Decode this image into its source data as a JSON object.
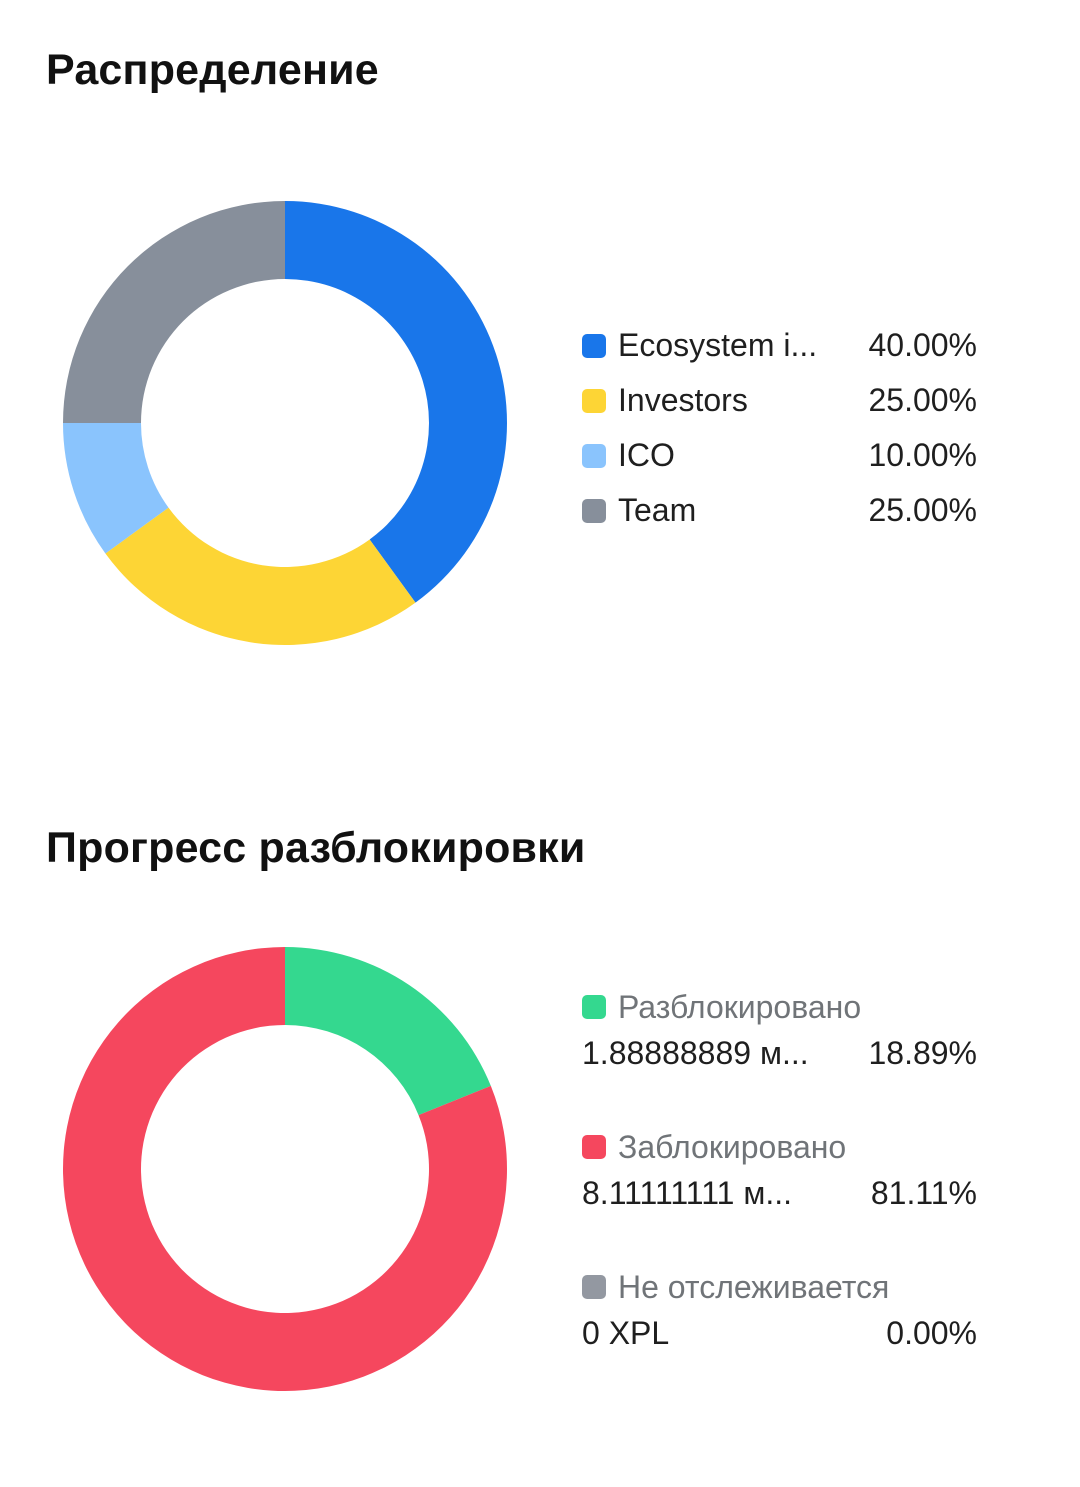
{
  "distribution": {
    "title": "Распределение",
    "items": [
      {
        "label": "Ecosystem i...",
        "percent": "40.00%",
        "value": 40,
        "color": "#1976EA"
      },
      {
        "label": "Investors",
        "percent": "25.00%",
        "value": 25,
        "color": "#FDD535"
      },
      {
        "label": "ICO",
        "percent": "10.00%",
        "value": 10,
        "color": "#8AC4FD"
      },
      {
        "label": "Team",
        "percent": "25.00%",
        "value": 25,
        "color": "#878F9B"
      }
    ]
  },
  "unlock": {
    "title": "Прогресс разблокировки",
    "items": [
      {
        "label": "Разблокировано",
        "amount": "1.88888889 м...",
        "percent": "18.89%",
        "value": 18.89,
        "color": "#34D88F"
      },
      {
        "label": "Заблокировано",
        "amount": "8.11111111 м...",
        "percent": "81.11%",
        "value": 81.11,
        "color": "#F5475E"
      },
      {
        "label": "Не отслеживается",
        "amount": "0 XPL",
        "percent": "0.00%",
        "value": 0,
        "color": "#9398A1"
      }
    ]
  },
  "chart_data": [
    {
      "type": "pie",
      "title": "Распределение",
      "categories": [
        "Ecosystem i...",
        "Investors",
        "ICO",
        "Team"
      ],
      "values": [
        40,
        25,
        10,
        25
      ],
      "legend": "right"
    },
    {
      "type": "pie",
      "title": "Прогресс разблокировки",
      "categories": [
        "Разблокировано",
        "Заблокировано",
        "Не отслеживается"
      ],
      "values": [
        18.89,
        81.11,
        0
      ],
      "legend": "right"
    }
  ]
}
